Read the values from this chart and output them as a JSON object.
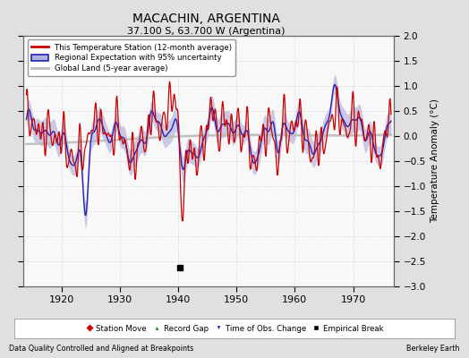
{
  "title": "MACACHIN, ARGENTINA",
  "subtitle": "37.100 S, 63.700 W (Argentina)",
  "ylabel": "Temperature Anomaly (°C)",
  "xlabel_left": "Data Quality Controlled and Aligned at Breakpoints",
  "xlabel_right": "Berkeley Earth",
  "ylim": [
    -3,
    2
  ],
  "xlim": [
    1913.5,
    1977
  ],
  "yticks": [
    -3,
    -2.5,
    -2,
    -1.5,
    -1,
    -0.5,
    0,
    0.5,
    1,
    1.5,
    2
  ],
  "xticks": [
    1920,
    1930,
    1940,
    1950,
    1960,
    1970
  ],
  "fig_bg_color": "#e0e0e0",
  "plot_bg_color": "#f8f8f8",
  "grid_color": "#cccccc",
  "empirical_break_x": 1940.3,
  "empirical_break_y": -2.63,
  "station_line_color": "#cc0000",
  "regional_line_color": "#2222bb",
  "regional_fill_color": "#b0b0dd",
  "global_line_color": "#bbbbbb",
  "legend_station": "This Temperature Station (12-month average)",
  "legend_regional": "Regional Expectation with 95% uncertainty",
  "legend_global": "Global Land (5-year average)"
}
